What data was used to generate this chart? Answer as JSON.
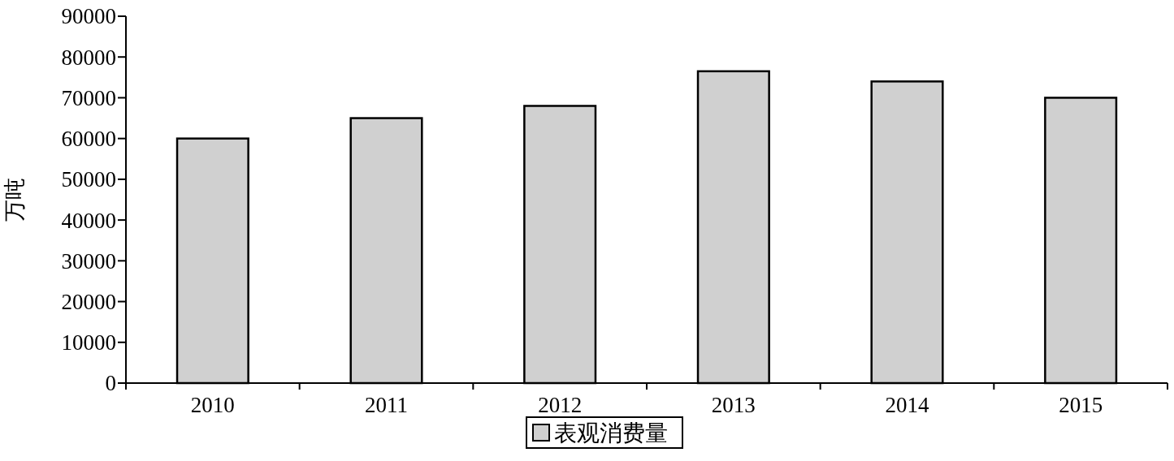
{
  "chart_data": {
    "type": "bar",
    "ylabel": "万吨",
    "categories": [
      "2010",
      "2011",
      "2012",
      "2013",
      "2014",
      "2015"
    ],
    "series": [
      {
        "name": "表观消费量",
        "color": "#d0d0d0",
        "values": [
          60000,
          65000,
          68000,
          76500,
          74000,
          70000
        ]
      }
    ],
    "ylim": [
      0,
      90000
    ],
    "yticks": [
      0,
      10000,
      20000,
      30000,
      40000,
      50000,
      60000,
      70000,
      80000,
      90000
    ],
    "grid": false,
    "legend": "bottom"
  }
}
